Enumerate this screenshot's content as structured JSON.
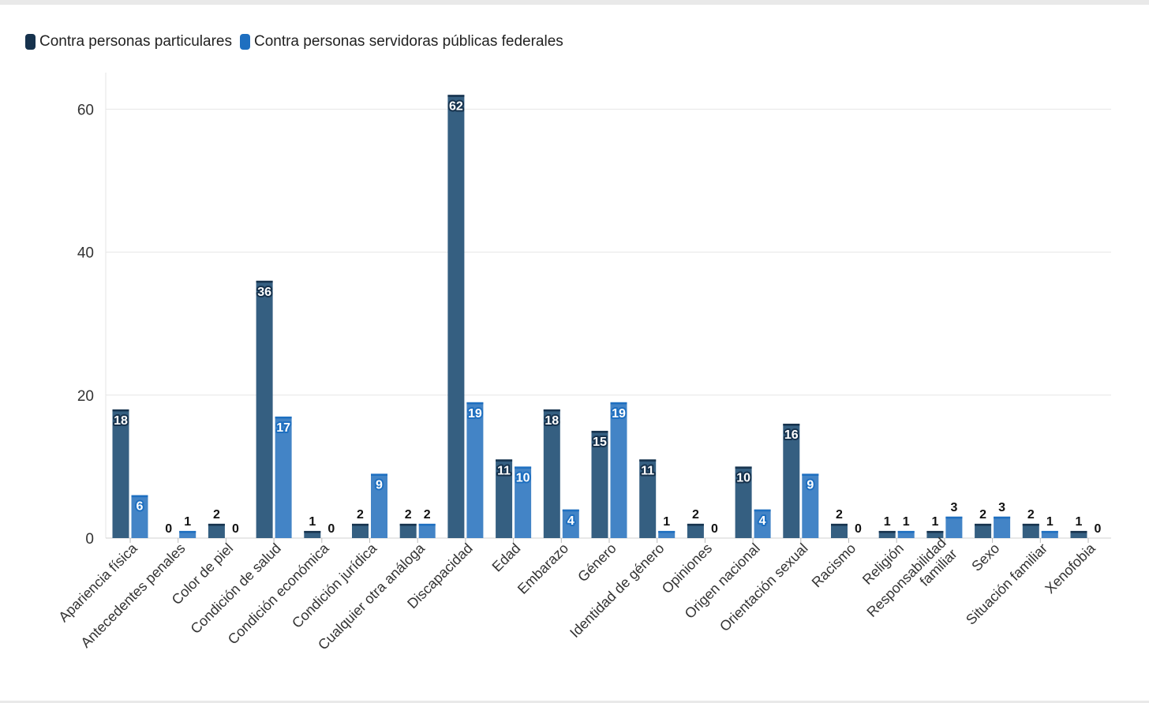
{
  "chart_data": {
    "type": "bar",
    "categories": [
      "Apariencia física",
      "Antecedentes penales",
      "Color de piel",
      "Condición de salud",
      "Condición económica",
      "Condición jurídica",
      "Cualquier otra análoga",
      "Discapacidad",
      "Edad",
      "Embarazo",
      "Género",
      "Identidad de género",
      "Opiniones",
      "Origen nacional",
      "Orientación sexual",
      "Racismo",
      "Religión",
      "Responsabilidad familiar",
      "Sexo",
      "Situación familiar",
      "Xenofobia"
    ],
    "series": [
      {
        "name": "Contra personas particulares",
        "color": "#355f81",
        "values": [
          18,
          0,
          2,
          36,
          1,
          2,
          2,
          62,
          11,
          18,
          15,
          11,
          2,
          10,
          16,
          2,
          1,
          1,
          2,
          2,
          1
        ]
      },
      {
        "name": "Contra personas servidoras públicas federales",
        "color": "#4384c6",
        "values": [
          6,
          1,
          0,
          17,
          0,
          9,
          2,
          19,
          10,
          4,
          19,
          1,
          0,
          4,
          9,
          0,
          1,
          3,
          3,
          1,
          0
        ]
      }
    ],
    "title": "",
    "xlabel": "",
    "ylabel": "",
    "ylim": [
      0,
      65
    ],
    "yticks": [
      0,
      20,
      40,
      60
    ],
    "grid": true,
    "legend": "top-left"
  }
}
